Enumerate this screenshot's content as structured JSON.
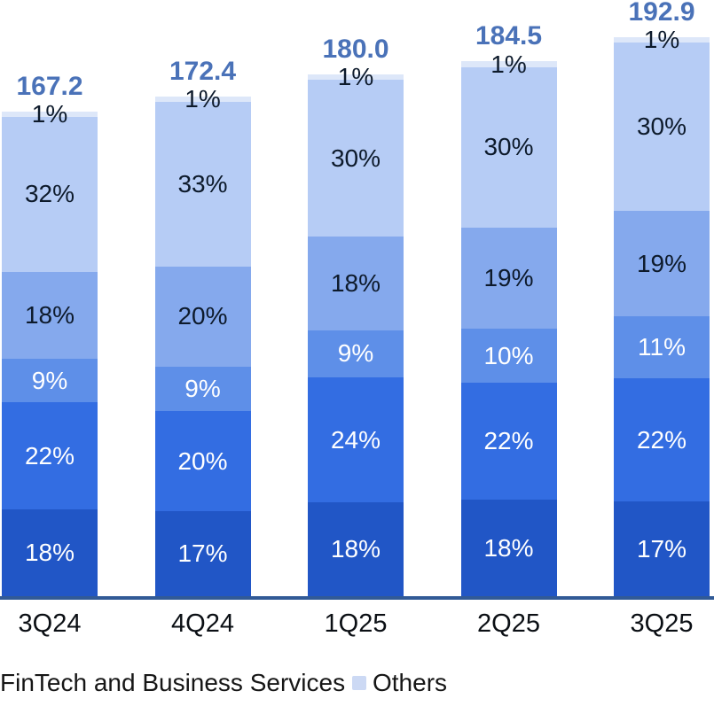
{
  "chart_data": {
    "type": "bar",
    "subtype": "stacked-percentage-columns",
    "title": "",
    "xlabel": "",
    "ylabel": "",
    "grid": false,
    "y_axis_visible": false,
    "legend_position": "bottom",
    "categories": [
      "3Q24",
      "4Q24",
      "1Q25",
      "2Q25",
      "3Q25"
    ],
    "totals": [
      "167.2",
      "172.4",
      "180.0",
      "184.5",
      "192.9"
    ],
    "series_bottom_to_top": [
      {
        "name": "",
        "values_pct": [
          18,
          17,
          18,
          18,
          17
        ],
        "color": "#2156c6",
        "label_color": "#ffffff"
      },
      {
        "name": "",
        "values_pct": [
          22,
          20,
          24,
          22,
          22
        ],
        "color": "#336de2",
        "label_color": "#ffffff"
      },
      {
        "name": "",
        "values_pct": [
          9,
          9,
          9,
          10,
          11
        ],
        "color": "#5e8fe8",
        "label_color": "#ffffff"
      },
      {
        "name": "",
        "values_pct": [
          18,
          20,
          18,
          19,
          19
        ],
        "color": "#85a9ed",
        "label_color": "#0d1a2b"
      },
      {
        "name": "FinTech and Business Services",
        "values_pct": [
          32,
          33,
          30,
          30,
          30
        ],
        "color": "#b6ccf5",
        "label_color": "#0d1a2b"
      },
      {
        "name": "Others",
        "values_pct": [
          1,
          1,
          1,
          1,
          1
        ],
        "color": "#dde7f9",
        "label_color": "#0d1a2b"
      }
    ],
    "legend": [
      {
        "label": "FinTech and Business Services",
        "swatch_color": ""
      },
      {
        "label": "Others",
        "swatch_color": "#ccd9f4"
      }
    ],
    "colors": {
      "total_label": "#4a72b8",
      "axis_line": "#315a96",
      "x_label": "#0b0f14",
      "legend_text": "#161616",
      "background": "#ffffff"
    }
  }
}
